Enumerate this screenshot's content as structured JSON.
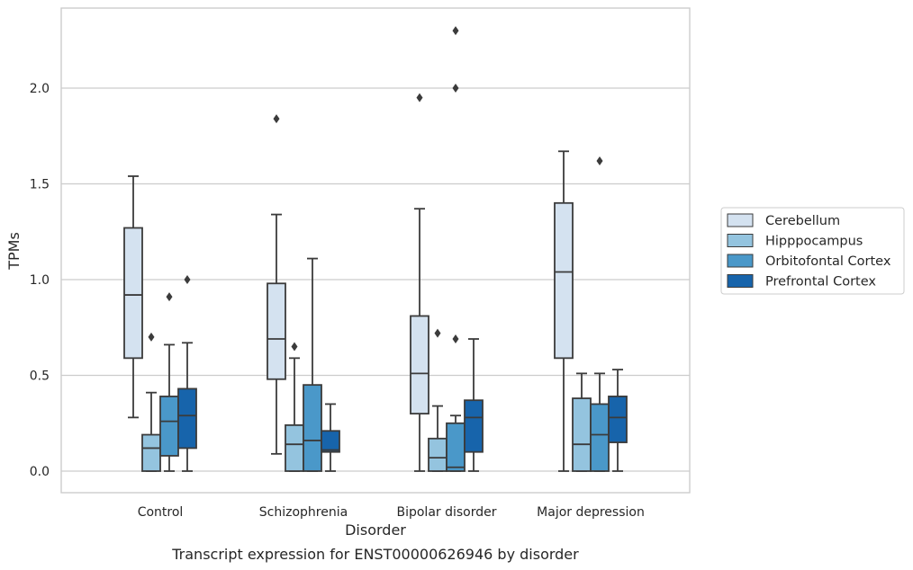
{
  "chart_data": {
    "type": "box",
    "xlabel": "Disorder",
    "ylabel": "TPMs",
    "caption": "Transcript expression for ENST00000626946 by disorder",
    "ylim": [
      -0.11,
      2.43
    ],
    "yticks": [
      "0.0",
      "0.5",
      "1.0",
      "1.5",
      "2.0"
    ],
    "ytick_values": [
      0,
      0.5,
      1.0,
      1.5,
      2.0
    ],
    "grid": "horizontal",
    "legend_position": "right",
    "categories": [
      "Control",
      "Schizophrenia",
      "Bipolar disorder",
      "Major depression"
    ],
    "series": [
      {
        "name": "Cerebellum",
        "color": "#d4e2f0",
        "boxes": [
          {
            "whislo": 0.28,
            "q1": 0.59,
            "med": 0.92,
            "q3": 1.27,
            "whishi": 1.54,
            "fliers": []
          },
          {
            "whislo": 0.09,
            "q1": 0.48,
            "med": 0.69,
            "q3": 0.98,
            "whishi": 1.34,
            "fliers": [
              1.84
            ]
          },
          {
            "whislo": 0.0,
            "q1": 0.3,
            "med": 0.51,
            "q3": 0.81,
            "whishi": 1.37,
            "fliers": [
              1.95
            ]
          },
          {
            "whislo": 0.0,
            "q1": 0.59,
            "med": 1.04,
            "q3": 1.4,
            "whishi": 1.67,
            "fliers": []
          }
        ]
      },
      {
        "name": "Hipppocampus",
        "color": "#94c4df",
        "boxes": [
          {
            "whislo": 0.0,
            "q1": 0.0,
            "med": 0.12,
            "q3": 0.19,
            "whishi": 0.41,
            "fliers": [
              0.7
            ]
          },
          {
            "whislo": 0.0,
            "q1": 0.0,
            "med": 0.14,
            "q3": 0.24,
            "whishi": 0.59,
            "fliers": [
              0.65
            ]
          },
          {
            "whislo": 0.0,
            "q1": 0.0,
            "med": 0.07,
            "q3": 0.17,
            "whishi": 0.34,
            "fliers": [
              0.72
            ]
          },
          {
            "whislo": 0.0,
            "q1": 0.0,
            "med": 0.14,
            "q3": 0.38,
            "whishi": 0.51,
            "fliers": []
          }
        ]
      },
      {
        "name": "Orbitofontal Cortex",
        "color": "#4a98c9",
        "boxes": [
          {
            "whislo": 0.0,
            "q1": 0.08,
            "med": 0.26,
            "q3": 0.39,
            "whishi": 0.66,
            "fliers": [
              0.91
            ]
          },
          {
            "whislo": 0.0,
            "q1": 0.0,
            "med": 0.16,
            "q3": 0.45,
            "whishi": 1.11,
            "fliers": []
          },
          {
            "whislo": 0.0,
            "q1": 0.0,
            "med": 0.02,
            "q3": 0.25,
            "whishi": 0.29,
            "fliers": [
              0.69,
              2.0,
              2.3
            ]
          },
          {
            "whislo": 0.0,
            "q1": 0.0,
            "med": 0.19,
            "q3": 0.35,
            "whishi": 0.51,
            "fliers": [
              1.62
            ]
          }
        ]
      },
      {
        "name": "Prefrontal Cortex",
        "color": "#1764ab",
        "boxes": [
          {
            "whislo": 0.0,
            "q1": 0.12,
            "med": 0.29,
            "q3": 0.43,
            "whishi": 0.67,
            "fliers": [
              1.0
            ]
          },
          {
            "whislo": 0.0,
            "q1": 0.1,
            "med": 0.11,
            "q3": 0.21,
            "whishi": 0.35,
            "fliers": []
          },
          {
            "whislo": 0.0,
            "q1": 0.1,
            "med": 0.28,
            "q3": 0.37,
            "whishi": 0.69,
            "fliers": []
          },
          {
            "whislo": 0.0,
            "q1": 0.15,
            "med": 0.28,
            "q3": 0.39,
            "whishi": 0.53,
            "fliers": []
          }
        ]
      }
    ]
  }
}
